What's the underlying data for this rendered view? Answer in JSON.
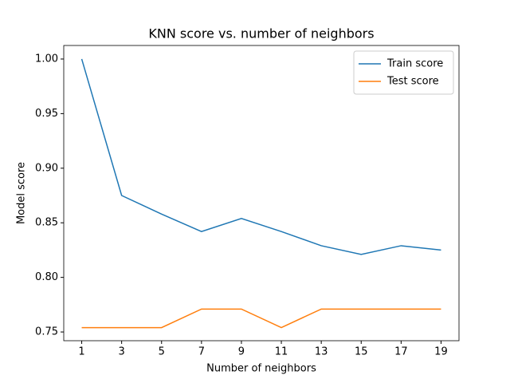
{
  "chart_data": {
    "type": "line",
    "title": "KNN score vs. number of neighbors",
    "x_label": "Number of neighbors",
    "y_label": "Model score",
    "x": [
      1,
      3,
      5,
      7,
      9,
      11,
      13,
      15,
      17,
      19
    ],
    "series": [
      {
        "name": "Train score",
        "color": "#1f77b4",
        "values": [
          1.0,
          0.875,
          0.858,
          0.842,
          0.854,
          0.842,
          0.829,
          0.821,
          0.829,
          0.825
        ]
      },
      {
        "name": "Test score",
        "color": "#ff7f0e",
        "values": [
          0.754,
          0.754,
          0.754,
          0.771,
          0.771,
          0.754,
          0.771,
          0.771,
          0.771,
          0.771
        ]
      }
    ],
    "xlim": [
      0.1,
      19.9
    ],
    "xticks": [
      1,
      3,
      5,
      7,
      9,
      11,
      13,
      15,
      17,
      19
    ],
    "ylim": [
      0.742,
      1.0124
    ],
    "yticks": [
      {
        "value": 0.75,
        "label": "0.75"
      },
      {
        "value": 0.8,
        "label": "0.80"
      },
      {
        "value": 0.85,
        "label": "0.85"
      },
      {
        "value": 0.9,
        "label": "0.90"
      },
      {
        "value": 0.95,
        "label": "0.95"
      },
      {
        "value": 1.0,
        "label": "1.00"
      }
    ],
    "legend": "upper right",
    "grid": false
  }
}
